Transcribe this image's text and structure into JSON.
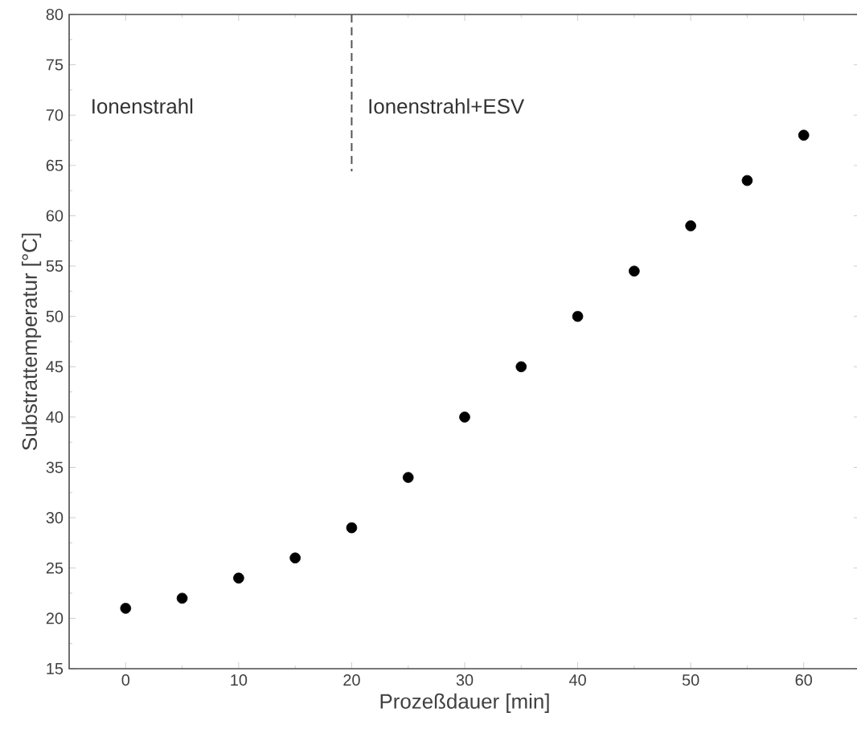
{
  "chart_data": {
    "type": "scatter",
    "xlabel": "Prozeßdauer [min]",
    "ylabel": "Substrattemperatur [°C]",
    "x": [
      0,
      5,
      10,
      15,
      20,
      25,
      30,
      35,
      40,
      45,
      50,
      55,
      60
    ],
    "values": [
      21,
      22,
      24,
      26,
      29,
      34,
      40,
      45,
      50,
      54.5,
      59,
      63.5,
      68
    ],
    "color": "#000000",
    "marker": "circle",
    "xlim": [
      -5,
      65
    ],
    "ylim": [
      15,
      80
    ],
    "xticks": [
      0,
      10,
      20,
      30,
      40,
      50,
      60
    ],
    "yticks": [
      15,
      20,
      25,
      30,
      35,
      40,
      45,
      50,
      55,
      60,
      65,
      70,
      75,
      80
    ],
    "ref_lines": [
      {
        "axis": "x",
        "value": 20,
        "line_style": "dashed",
        "color": "#555555"
      }
    ],
    "annotations": [
      "Ionenstrahl",
      "Ionenstrahl+ESV"
    ],
    "grid": false
  }
}
